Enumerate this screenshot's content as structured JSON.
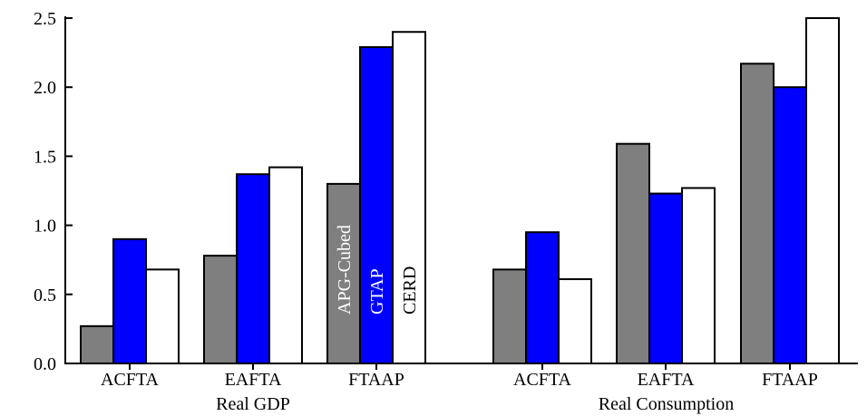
{
  "chart_data": {
    "type": "bar",
    "ylim": [
      0,
      2.5
    ],
    "yticks": [
      "0.0",
      "0.5",
      "1.0",
      "1.5",
      "2.0",
      "2.5"
    ],
    "groups": [
      {
        "label": "Real GDP",
        "categories": [
          "ACFTA",
          "EAFTA",
          "FTAAP"
        ],
        "series": [
          {
            "name": "APG-Cubed",
            "color": "#7f7f7f",
            "values": [
              0.27,
              0.78,
              1.3
            ]
          },
          {
            "name": "GTAP",
            "color": "#0000ff",
            "values": [
              0.9,
              1.37,
              2.29
            ]
          },
          {
            "name": "CERD",
            "color": "#ffffff",
            "values": [
              0.68,
              1.42,
              2.4
            ]
          }
        ]
      },
      {
        "label": "Real Consumption",
        "categories": [
          "ACFTA",
          "EAFTA",
          "FTAAP"
        ],
        "series": [
          {
            "name": "APG-Cubed",
            "color": "#7f7f7f",
            "values": [
              0.68,
              1.59,
              2.17
            ]
          },
          {
            "name": "GTAP",
            "color": "#0000ff",
            "values": [
              0.95,
              1.23,
              2.0
            ]
          },
          {
            "name": "CERD",
            "color": "#ffffff",
            "values": [
              0.61,
              1.27,
              2.5
            ]
          }
        ]
      }
    ],
    "in_bar_labels": {
      "group": 0,
      "category": 2,
      "texts": [
        "APG-Cubed",
        "GTAP",
        "CERD"
      ],
      "text_colors": [
        "#ffffff",
        "#ffffff",
        "#000000"
      ]
    }
  }
}
